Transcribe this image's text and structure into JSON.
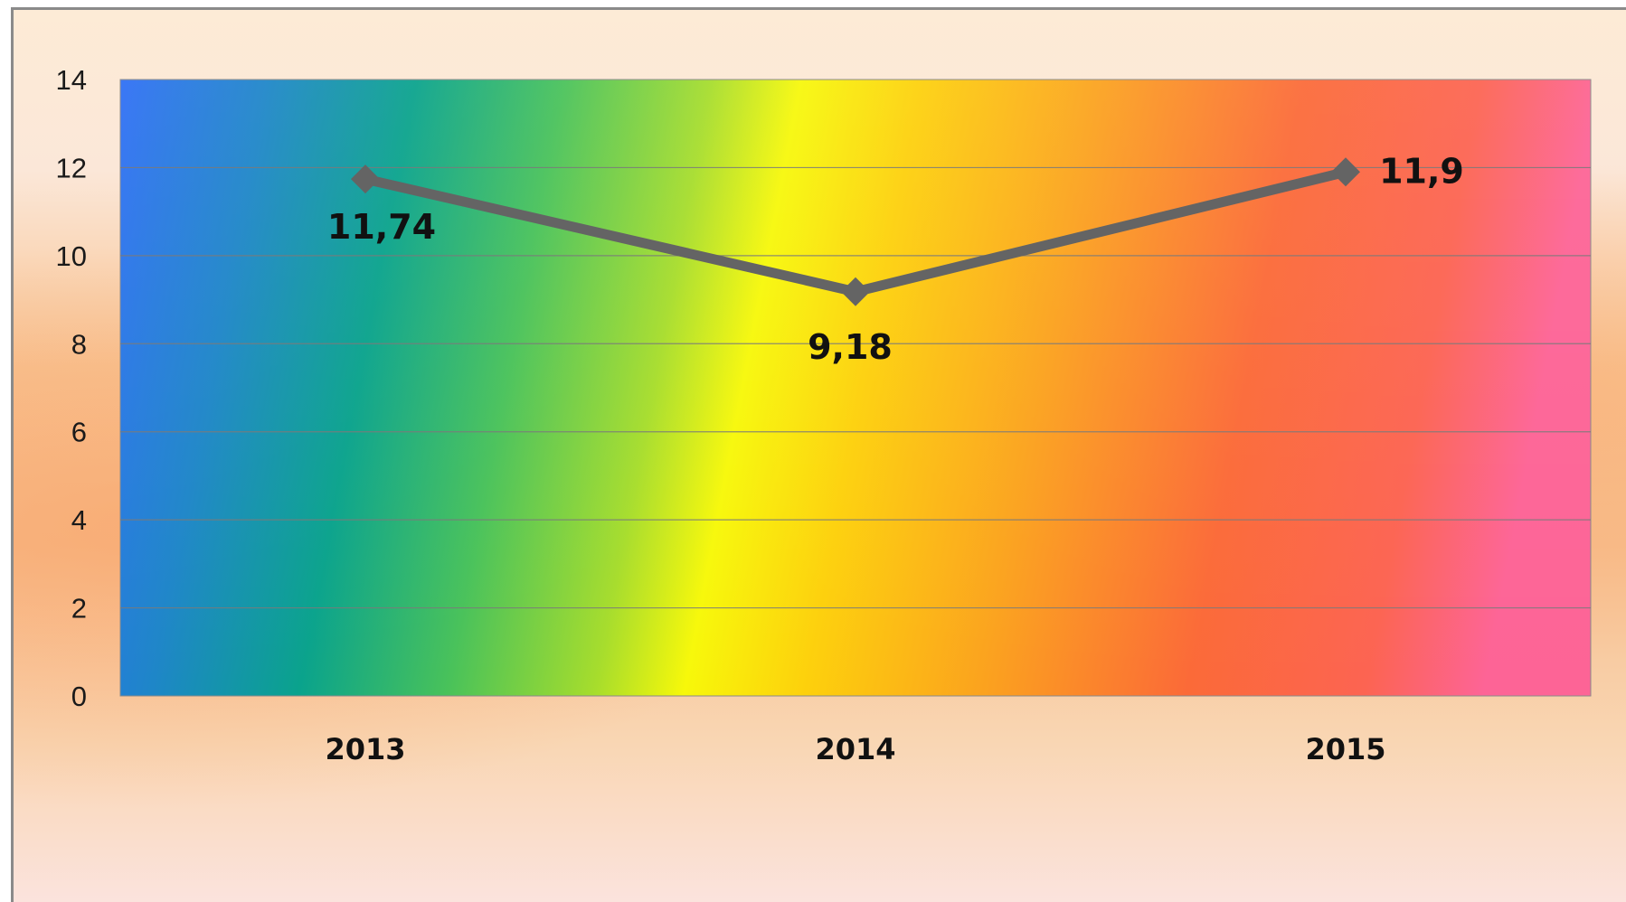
{
  "chart_data": {
    "type": "line",
    "title": "",
    "xlabel": "",
    "ylabel": "",
    "categories": [
      "2013",
      "2014",
      "2015"
    ],
    "series": [
      {
        "values": [
          11.74,
          9.18,
          11.9
        ],
        "data_labels": [
          "11,74",
          "9,18",
          "11,9"
        ],
        "color": "#646464",
        "marker": "diamond"
      }
    ],
    "ylim": [
      0,
      14
    ],
    "yticks": [
      "0",
      "2",
      "4",
      "6",
      "8",
      "10",
      "12",
      "14"
    ],
    "grid": true,
    "legend": "none",
    "plot_background": "rainbow-gradient"
  },
  "colors": {
    "line": "#646464",
    "gridline": "#7a7a7a",
    "frame_border": "#8a8a8a"
  }
}
